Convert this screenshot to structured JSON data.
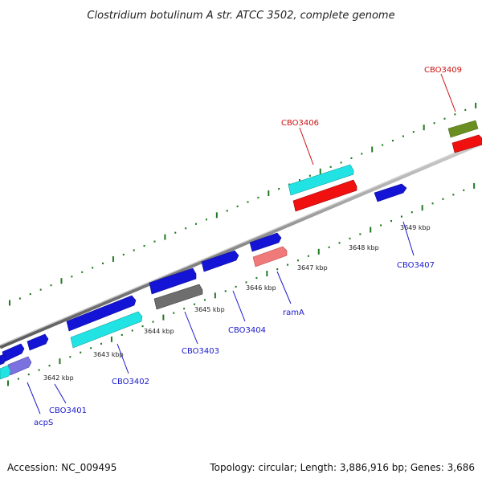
{
  "title": "Clostridium botulinum A str. ATCC 3502, complete genome",
  "footer": {
    "accession": "Accession: NC_009495",
    "summary": "Topology: circular; Length: 3,886,916 bp; Genes: 3,686"
  },
  "kbp_labels": [
    "3642 kbp",
    "3643 kbp",
    "3644 kbp",
    "3645 kbp",
    "3646 kbp",
    "3647 kbp",
    "3648 kbp",
    "3649 kbp"
  ],
  "gene_labels": {
    "cbo3401": "CBO3401",
    "acps": "acpS",
    "cbo3402": "CBO3402",
    "cbo3403": "CBO3403",
    "cbo3404": "CBO3404",
    "rama": "ramA",
    "cbo3406": "CBO3406",
    "cbo3407": "CBO3407",
    "cbo3409": "CBO3409"
  },
  "colors": {
    "backbone": "#8a8a8a",
    "tick": "#1f7a1f",
    "gene_blue": "#1414d6",
    "gene_cyan": "#22e3e3",
    "gene_red": "#f01010",
    "gene_pink": "#f07a7a",
    "gene_gray": "#6e6e6e",
    "gene_olive": "#6b8e23",
    "gene_lavender": "#7b72e0",
    "label_blue": "#1a1acc",
    "label_red": "#cc1111"
  }
}
